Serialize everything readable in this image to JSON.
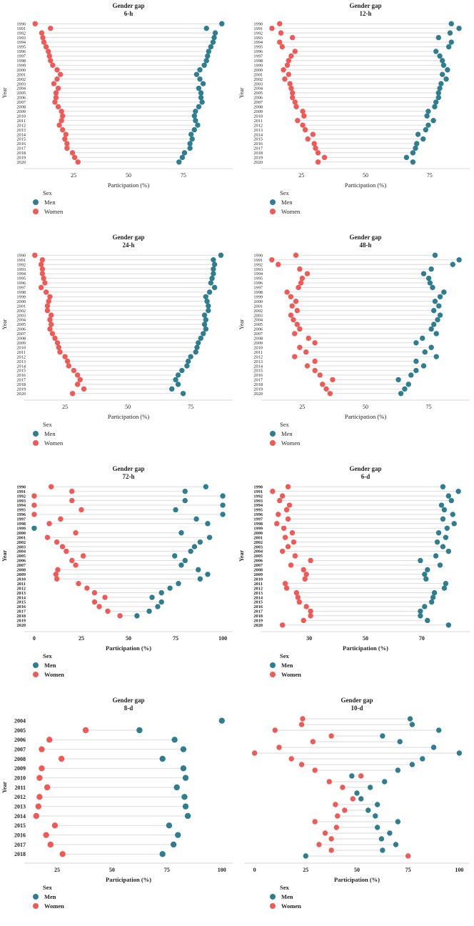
{
  "page": {
    "background": "#ffffff"
  },
  "legend": {
    "title": "Sex",
    "men": "Men",
    "women": "Women"
  },
  "colors": {
    "men": "#2e7e8f",
    "women": "#ef5a57",
    "connector": "#d8d8d8",
    "axis": "#d9d9d9",
    "text": "#1f1f1f"
  },
  "chart_data": [
    {
      "id": "6-h",
      "type": "scatter",
      "variant": "dumbbell",
      "title": "Gender gap",
      "subtitle": "6-h",
      "xlabel": "Participation (%)",
      "ylabel": "Year",
      "xticks": [
        25,
        50,
        75
      ],
      "xdomain": [
        4.5,
        95.5
      ],
      "grid": false,
      "legend_position": "bottom-left",
      "emphasis": false,
      "years": [
        1990,
        1991,
        1992,
        1993,
        1994,
        1995,
        1996,
        1997,
        1998,
        1999,
        2000,
        2001,
        2002,
        2003,
        2004,
        2005,
        2006,
        2007,
        2008,
        2009,
        2010,
        2011,
        2012,
        2013,
        2014,
        2015,
        2016,
        2017,
        2018,
        2019,
        2020
      ],
      "series": [
        {
          "name": "Men",
          "values": [
            92.5,
            85.5,
            89.5,
            89,
            88.5,
            87.5,
            86.5,
            86,
            85.5,
            84.5,
            82.5,
            81,
            82.5,
            84,
            82,
            83,
            83,
            83.5,
            82,
            80.5,
            80,
            80.5,
            81.5,
            80,
            78.5,
            79,
            78,
            78,
            75.5,
            74.5,
            73
          ]
        },
        {
          "name": "Women",
          "values": [
            7.5,
            14.5,
            10.5,
            11,
            11.5,
            12.5,
            13.5,
            14,
            14.5,
            15.5,
            17.5,
            19,
            17.5,
            16,
            18,
            17,
            17,
            16.5,
            18,
            19.5,
            20,
            19.5,
            18.5,
            20,
            21.5,
            21,
            22,
            22,
            24.5,
            25.5,
            27
          ]
        }
      ]
    },
    {
      "id": "12-h",
      "type": "scatter",
      "variant": "dumbbell",
      "title": "Gender gap",
      "subtitle": "12-h",
      "xlabel": "Participation (%)",
      "ylabel": "Year",
      "xticks": [
        25,
        50,
        75
      ],
      "xdomain": [
        11,
        89
      ],
      "grid": false,
      "legend_position": "bottom-left",
      "emphasis": false,
      "years": [
        1990,
        1991,
        1992,
        1993,
        1994,
        1995,
        1996,
        1997,
        1998,
        1999,
        2000,
        2001,
        2002,
        2003,
        2004,
        2005,
        2006,
        2007,
        2008,
        2009,
        2010,
        2011,
        2012,
        2013,
        2014,
        2015,
        2016,
        2017,
        2018,
        2019,
        2020
      ],
      "series": [
        {
          "name": "Men",
          "values": [
            83.5,
            86.5,
            83,
            78.5,
            83.5,
            82.5,
            77.5,
            79,
            80,
            80.5,
            82,
            80,
            81.5,
            79.5,
            79,
            78.5,
            78.5,
            77.5,
            77,
            74.5,
            74,
            76.5,
            74.5,
            73.5,
            70.5,
            72.5,
            70,
            69.5,
            68.5,
            66,
            68.5
          ]
        },
        {
          "name": "Women",
          "values": [
            16.5,
            13.5,
            17,
            21.5,
            16.5,
            17.5,
            22.5,
            21,
            20,
            19.5,
            18,
            20,
            18.5,
            20.5,
            21,
            21.5,
            21.5,
            22.5,
            23,
            25.5,
            26,
            23.5,
            25.5,
            26.5,
            29.5,
            27.5,
            30,
            30.5,
            31.5,
            34,
            31.5
          ]
        }
      ]
    },
    {
      "id": "24-h",
      "type": "scatter",
      "variant": "dumbbell",
      "title": "Gender gap",
      "subtitle": "24-h",
      "xlabel": "Participation (%)",
      "ylabel": "Year",
      "xticks": [
        25,
        50,
        75
      ],
      "xdomain": [
        10.5,
        90
      ],
      "grid": false,
      "legend_position": "bottom-left",
      "emphasis": false,
      "years": [
        1990,
        1991,
        1992,
        1993,
        1994,
        1995,
        1996,
        1997,
        1998,
        1999,
        2000,
        2001,
        2002,
        2003,
        2004,
        2005,
        2006,
        2007,
        2008,
        2009,
        2010,
        2011,
        2012,
        2013,
        2014,
        2015,
        2016,
        2017,
        2018,
        2019,
        2020
      ],
      "series": [
        {
          "name": "Men",
          "values": [
            87,
            84,
            84.5,
            84,
            84,
            83.5,
            83,
            84.5,
            82.5,
            81,
            81.5,
            82,
            82,
            80.5,
            81,
            80.5,
            81,
            80,
            79,
            78,
            77.5,
            77,
            75,
            74,
            73.5,
            71.5,
            70,
            69,
            70,
            67.5,
            72
          ]
        },
        {
          "name": "Women",
          "values": [
            13,
            16,
            15.5,
            16,
            16,
            16.5,
            17,
            15.5,
            17.5,
            19,
            18.5,
            18,
            18,
            19.5,
            19,
            19.5,
            19,
            20,
            21,
            22,
            22.5,
            23,
            25,
            26,
            26.5,
            28.5,
            30,
            31,
            30,
            32.5,
            28
          ]
        }
      ]
    },
    {
      "id": "48-h",
      "type": "scatter",
      "variant": "dumbbell",
      "title": "Gender gap",
      "subtitle": "48-h",
      "xlabel": "Participation (%)",
      "ylabel": "Year",
      "xticks": [
        25,
        50,
        75
      ],
      "xdomain": [
        10.5,
        89.5
      ],
      "grid": false,
      "legend_position": "bottom-left",
      "emphasis": false,
      "years": [
        1990,
        1991,
        1992,
        1993,
        1994,
        1995,
        1996,
        1997,
        1998,
        1999,
        2000,
        2001,
        2002,
        2003,
        2004,
        2005,
        2006,
        2007,
        2008,
        2009,
        2010,
        2011,
        2012,
        2013,
        2014,
        2015,
        2016,
        2017,
        2018,
        2019,
        2020
      ],
      "series": [
        {
          "name": "Men",
          "values": [
            77.5,
            87,
            84.5,
            76,
            73,
            75,
            75.5,
            76.5,
            81,
            79.5,
            77.5,
            79,
            77,
            79.5,
            78.5,
            77,
            76,
            78,
            72.5,
            70,
            76,
            73.5,
            78,
            70,
            73,
            70,
            68,
            63,
            67,
            65.5,
            64
          ]
        },
        {
          "name": "Women",
          "values": [
            22.5,
            13,
            15.5,
            24,
            27,
            25,
            24.5,
            23.5,
            19,
            20.5,
            22.5,
            21,
            23,
            20.5,
            21.5,
            23,
            24,
            22,
            27.5,
            30,
            24,
            26.5,
            22,
            30,
            27,
            30,
            32,
            37,
            33,
            34.5,
            36
          ]
        }
      ]
    },
    {
      "id": "72-h",
      "type": "scatter",
      "variant": "dumbbell",
      "title": "Gender gap",
      "subtitle": "72-h",
      "xlabel": "Participation (%)",
      "ylabel": "Year",
      "xticks": [
        0,
        25,
        50,
        75,
        100
      ],
      "xdomain": [
        -3,
        103
      ],
      "grid": false,
      "legend_position": "bottom-left",
      "emphasis": true,
      "years": [
        1990,
        1991,
        1992,
        1993,
        1994,
        1995,
        1996,
        1997,
        1998,
        1999,
        2000,
        2001,
        2002,
        2003,
        2004,
        2005,
        2006,
        2007,
        2008,
        2009,
        2010,
        2011,
        2012,
        2013,
        2014,
        2015,
        2016,
        2017,
        2018,
        2019,
        2020
      ],
      "series": [
        {
          "name": "Men",
          "values": [
            91,
            80,
            100,
            80,
            100,
            75,
            100,
            86,
            92,
            0,
            78,
            93,
            88,
            85,
            83,
            74.5,
            80,
            78,
            87,
            92,
            88,
            76.5,
            72,
            67.5,
            62.5,
            67.5,
            65.5,
            61,
            54.5,
            null,
            null
          ]
        },
        {
          "name": "Women",
          "values": [
            9,
            20,
            0,
            20,
            0,
            25,
            0,
            14,
            8,
            null,
            22,
            7,
            12,
            15,
            17,
            26,
            20,
            22,
            12.5,
            11.5,
            12,
            23.5,
            28,
            32,
            37.5,
            32,
            34.5,
            39,
            45.5,
            null,
            null
          ]
        }
      ]
    },
    {
      "id": "6-d",
      "type": "scatter",
      "variant": "dumbbell",
      "title": "Gender gap",
      "subtitle": "6-d",
      "xlabel": "Participation (%)",
      "ylabel": "Year",
      "xticks": [
        30,
        50,
        70
      ],
      "xdomain": [
        14.5,
        85.5
      ],
      "grid": false,
      "legend_position": "bottom-left",
      "emphasis": true,
      "years": [
        1990,
        1991,
        1992,
        1993,
        1994,
        1995,
        1996,
        1997,
        1998,
        1999,
        2000,
        2001,
        2002,
        2003,
        2004,
        2005,
        2006,
        2007,
        2008,
        2009,
        2010,
        2011,
        2012,
        2013,
        2014,
        2015,
        2016,
        2017,
        2018,
        2019,
        2020
      ],
      "series": [
        {
          "name": "Men",
          "values": [
            77.5,
            83,
            79.5,
            80.5,
            77,
            78,
            81,
            77.5,
            81.5,
            79,
            76,
            78.5,
            75.5,
            77.5,
            79.5,
            75,
            69.5,
            76.5,
            72,
            71,
            71.5,
            78.5,
            78,
            74.5,
            74,
            73.5,
            71,
            69.5,
            69.5,
            72,
            79.5
          ]
        },
        {
          "name": "Women",
          "values": [
            22.5,
            17,
            20.5,
            19.5,
            23,
            22,
            19,
            22.5,
            18.5,
            21,
            24,
            21.5,
            24.5,
            22.5,
            20.5,
            25,
            30.5,
            23.5,
            28,
            29,
            28.5,
            21.5,
            22,
            25.5,
            26,
            26.5,
            29,
            30.5,
            30.5,
            28,
            20.5
          ]
        }
      ]
    },
    {
      "id": "8-d",
      "type": "scatter",
      "variant": "dumbbell",
      "title": "Gender gap",
      "subtitle": "8-d",
      "xlabel": "Participation (%)",
      "ylabel": "Year",
      "xticks": [
        25,
        50,
        75,
        100
      ],
      "xdomain": [
        12,
        103
      ],
      "grid": false,
      "legend_position": "bottom-left",
      "emphasis": true,
      "years": [
        2004,
        2005,
        2006,
        2007,
        2008,
        2009,
        2010,
        2011,
        2012,
        2013,
        2014,
        2015,
        2016,
        2017,
        2018
      ],
      "series": [
        {
          "name": "Men",
          "values": [
            100,
            62.5,
            78.5,
            82.5,
            73,
            82.5,
            83.5,
            79.5,
            83,
            83.5,
            84.5,
            76,
            80,
            78,
            73
          ]
        },
        {
          "name": "Women",
          "values": [
            null,
            38,
            21.5,
            18,
            27,
            18,
            17,
            20.5,
            17,
            16.5,
            15.5,
            24,
            20,
            22,
            27.5
          ]
        }
      ]
    },
    {
      "id": "10-d",
      "type": "scatter",
      "variant": "dumbbell",
      "title": "Gender gap",
      "subtitle": "10-d",
      "xlabel": "Participation (%)",
      "ylabel": "",
      "xticks": [
        0,
        25,
        50,
        75,
        100
      ],
      "xdomain": [
        -3,
        103
      ],
      "grid": false,
      "legend_position": "bottom-left",
      "emphasis": true,
      "years": [],
      "series": [
        {
          "name": "Men",
          "values": [
            76,
            77,
            90,
            62.5,
            71,
            87.5,
            100,
            82,
            77,
            70,
            47.5,
            63.5,
            56.5,
            50,
            52,
            60,
            55.5,
            59,
            70,
            60,
            66,
            62,
            69,
            62.5,
            25
          ]
        },
        {
          "name": "Women",
          "values": [
            23.5,
            23,
            10,
            37.5,
            28.5,
            12,
            0,
            18,
            23,
            29.5,
            52,
            36.5,
            43,
            null,
            48,
            39.5,
            44,
            40.5,
            29.5,
            40,
            34.5,
            37.5,
            31.5,
            37.5,
            75
          ]
        }
      ]
    }
  ]
}
